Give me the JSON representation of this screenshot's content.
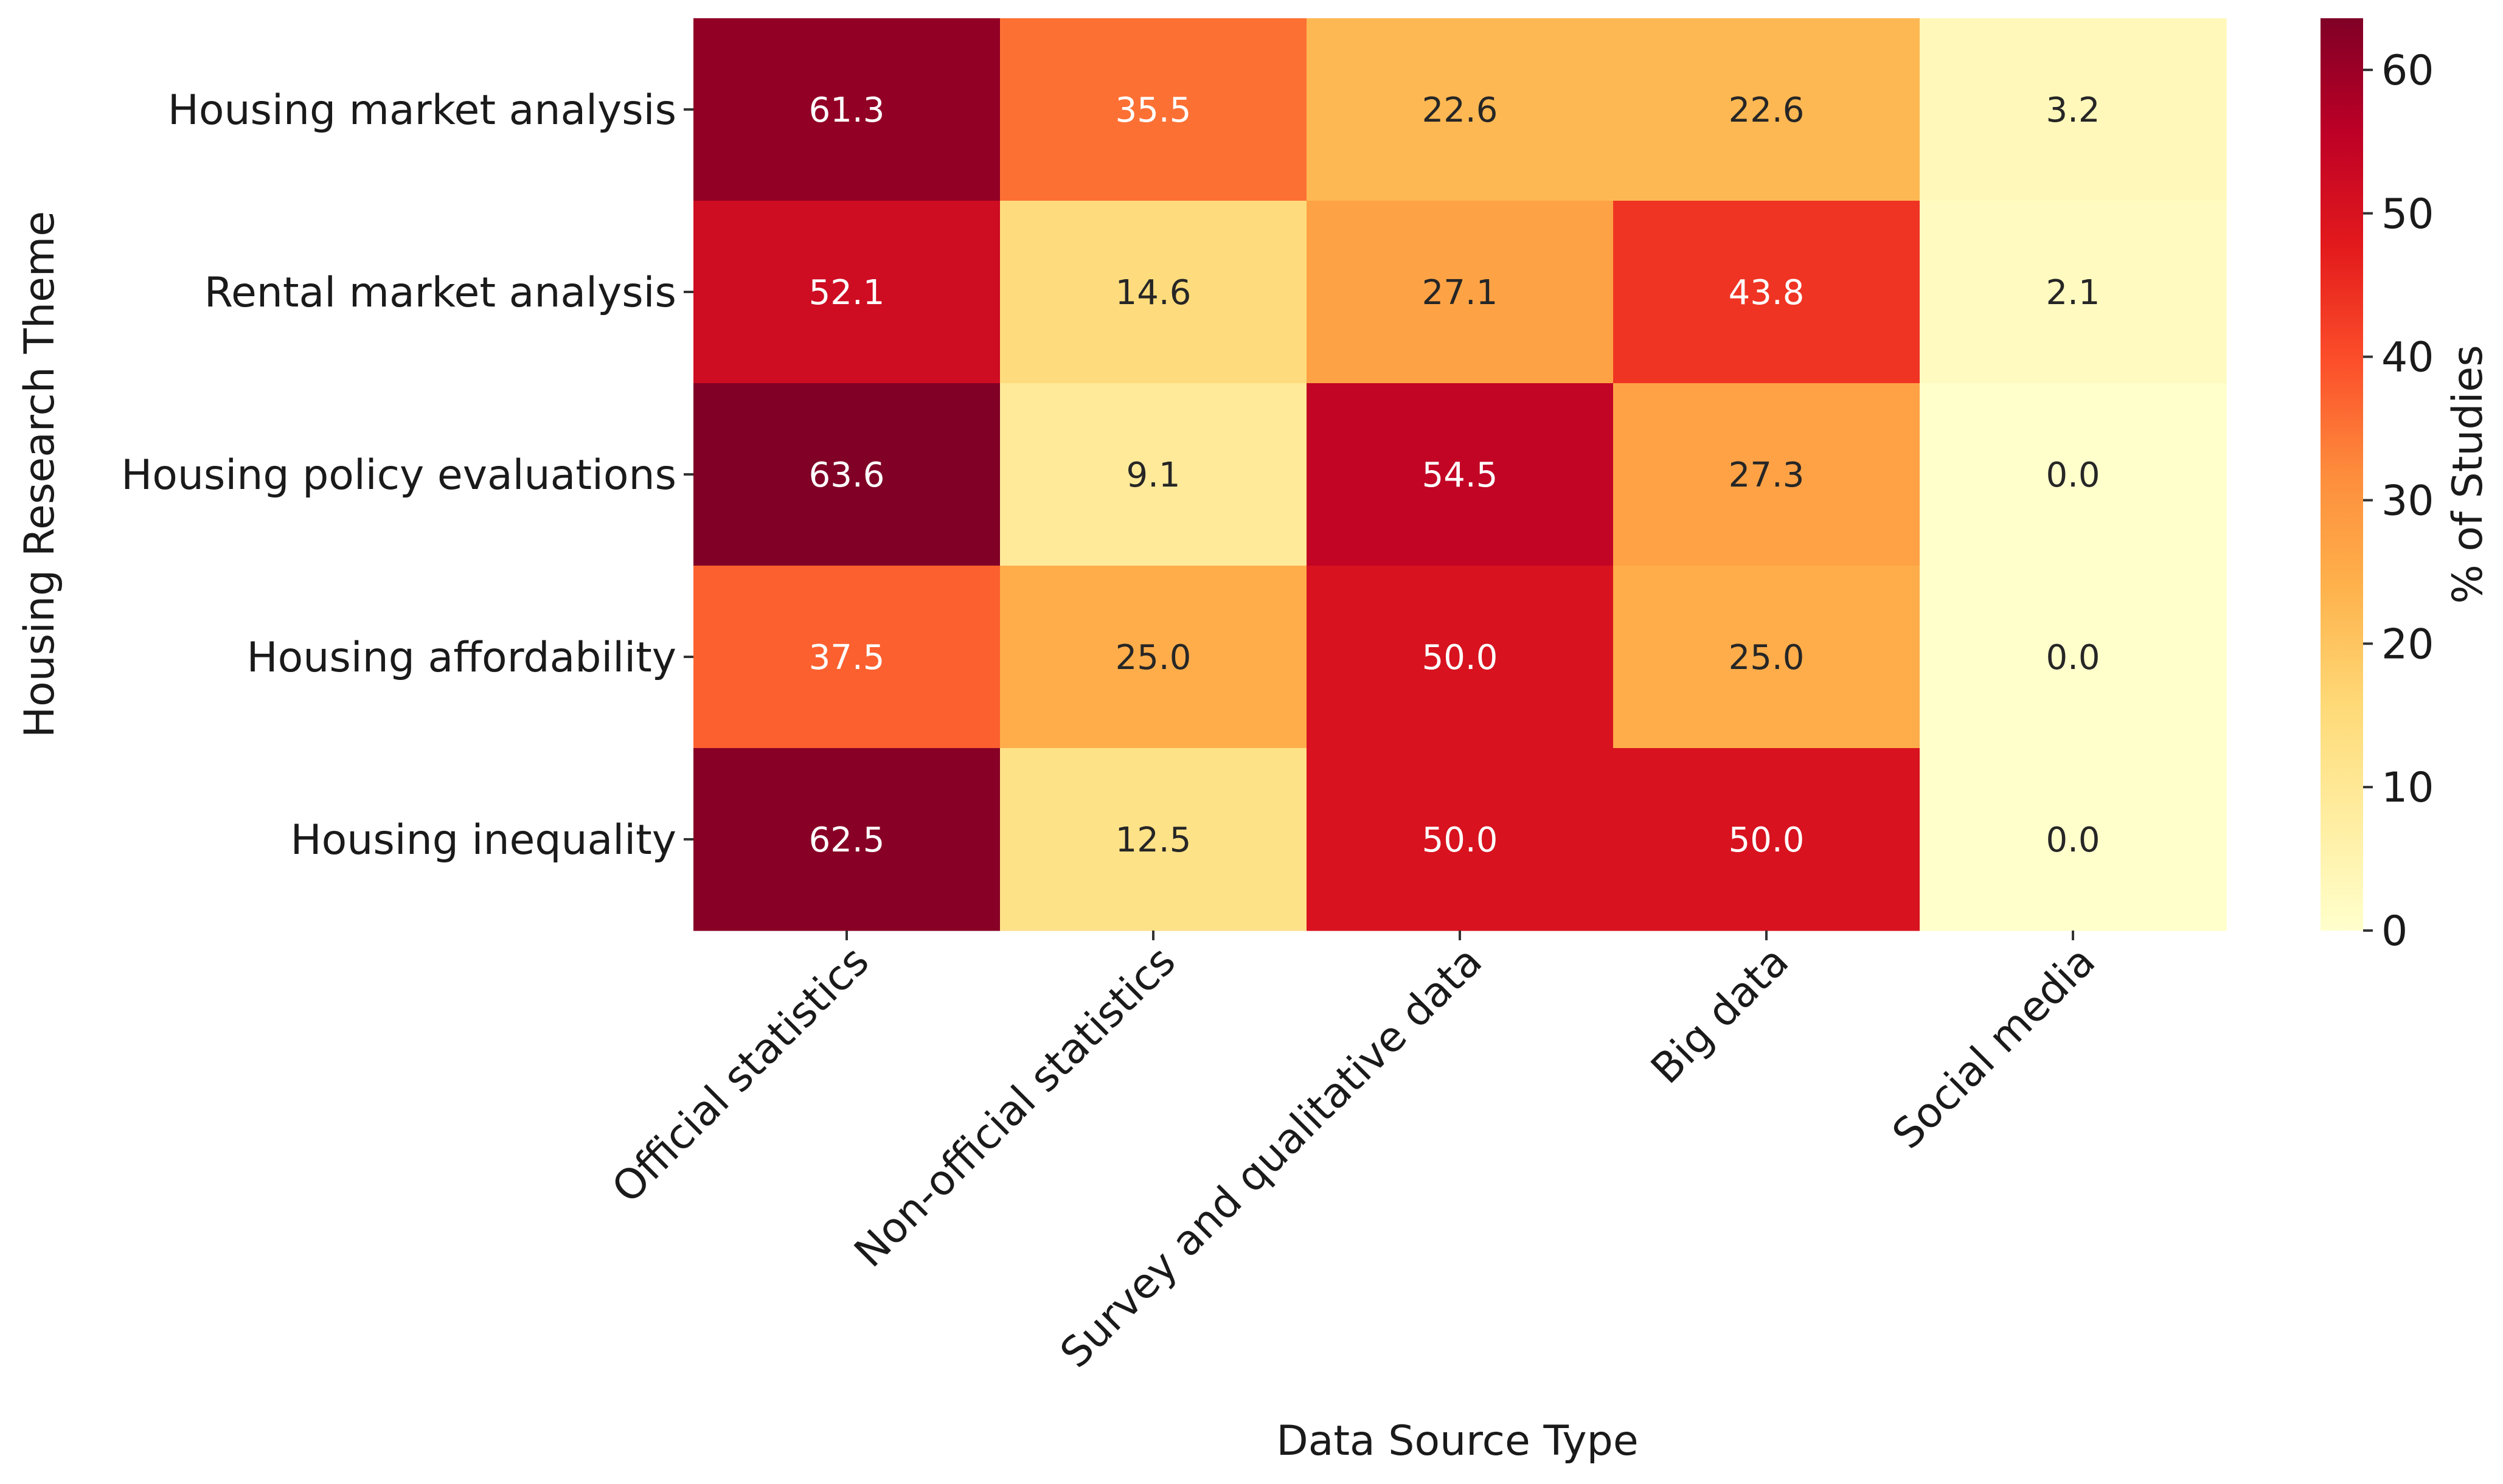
{
  "chart_data": {
    "type": "heatmap",
    "title": "",
    "xlabel": "Data Source Type",
    "ylabel": "Housing Research Theme",
    "rows": [
      "Housing market analysis",
      "Rental market analysis",
      "Housing policy evaluations",
      "Housing affordability",
      "Housing inequality"
    ],
    "columns": [
      "Official statistics",
      "Non-official statistics",
      "Survey and qualitative data",
      "Big data",
      "Social media"
    ],
    "values": [
      [
        61.3,
        35.5,
        22.6,
        22.6,
        3.2
      ],
      [
        52.1,
        14.6,
        27.1,
        43.8,
        2.1
      ],
      [
        63.6,
        9.1,
        54.5,
        27.3,
        0.0
      ],
      [
        37.5,
        25.0,
        50.0,
        25.0,
        0.0
      ],
      [
        62.5,
        12.5,
        50.0,
        50.0,
        0.0
      ]
    ],
    "value_format": "0.0",
    "colorbar": {
      "label": "% of Studies",
      "range": [
        0,
        63.6
      ],
      "ticks": [
        0,
        10,
        20,
        30,
        40,
        50,
        60
      ],
      "colormap": "YlOrRd",
      "stops": [
        "#ffffcc",
        "#ffeda0",
        "#fed976",
        "#feb24c",
        "#fd8d3c",
        "#fc4e2a",
        "#e31a1c",
        "#bd0026",
        "#800026"
      ]
    }
  }
}
